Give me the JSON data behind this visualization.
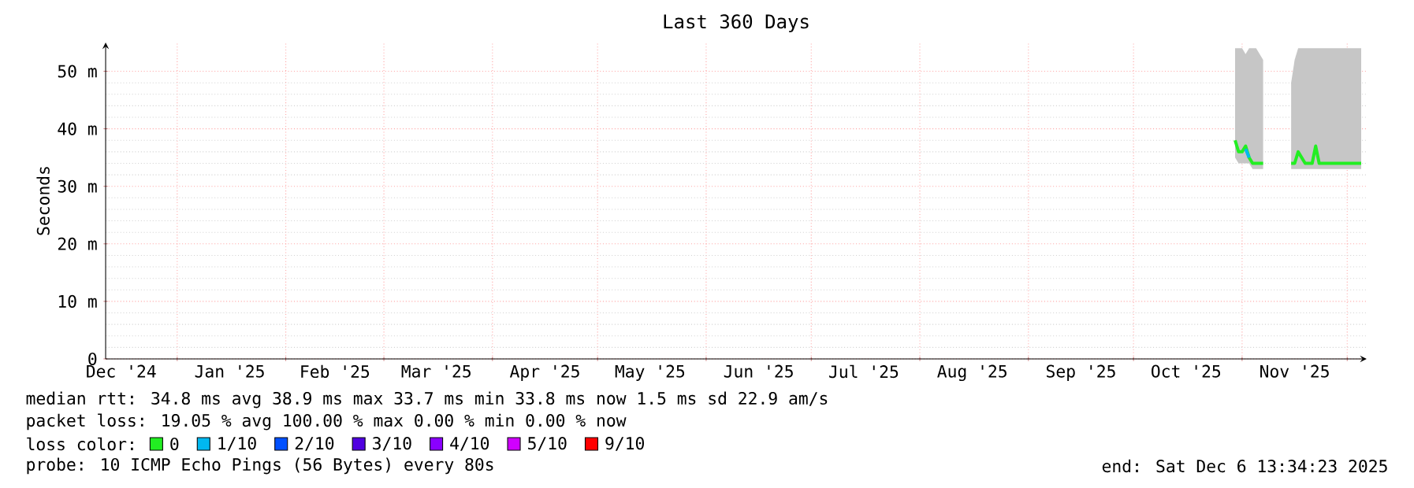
{
  "chart_data": {
    "type": "line",
    "title": "Last 360 Days",
    "ylabel": "Seconds",
    "xlim": [
      "2024-12-11T13:34",
      "2025-12-06T13:34"
    ],
    "xticks": [
      {
        "value": "2025-01-01",
        "label": null
      },
      {
        "value": "2025-02-01",
        "label": null
      },
      {
        "value": "2025-03-01",
        "label": null
      },
      {
        "value": "2025-04-01",
        "label": null
      },
      {
        "value": "2025-05-01",
        "label": null
      },
      {
        "value": "2025-06-01",
        "label": null
      },
      {
        "value": "2025-07-01",
        "label": null
      },
      {
        "value": "2025-08-01",
        "label": null
      },
      {
        "value": "2025-09-01",
        "label": null
      },
      {
        "value": "2025-10-01",
        "label": null
      },
      {
        "value": "2025-11-01",
        "label": null
      },
      {
        "value": "2025-12-01",
        "label": null
      },
      {
        "value": "2024-12-16",
        "label": "Dec '24"
      },
      {
        "value": "2025-01-16",
        "label": "Jan '25"
      },
      {
        "value": "2025-02-15",
        "label": "Feb '25"
      },
      {
        "value": "2025-03-16",
        "label": "Mar '25"
      },
      {
        "value": "2025-04-16",
        "label": "Apr '25"
      },
      {
        "value": "2025-05-16",
        "label": "May '25"
      },
      {
        "value": "2025-06-16",
        "label": "Jun '25"
      },
      {
        "value": "2025-07-16",
        "label": "Jul '25"
      },
      {
        "value": "2025-08-16",
        "label": "Aug '25"
      },
      {
        "value": "2025-09-16",
        "label": "Sep '25"
      },
      {
        "value": "2025-10-16",
        "label": "Oct '25"
      },
      {
        "value": "2025-11-16",
        "label": "Nov '25"
      }
    ],
    "ylim": [
      0,
      55
    ],
    "yticks": [
      0,
      {
        "value": 10,
        "label": "10 m"
      },
      {
        "value": 20,
        "label": "20 m"
      },
      {
        "value": 30,
        "label": "30 m"
      },
      {
        "value": 40,
        "label": "40 m"
      },
      {
        "value": 50,
        "label": "50 m"
      }
    ],
    "grid": true,
    "legend": "bottom",
    "legend_title": "loss color:",
    "series": [
      {
        "name": "0",
        "color": "#22ee22",
        "x": [
          "2025-10-30",
          "2025-10-31",
          "2025-11-01",
          "2025-11-02",
          "2025-11-03",
          "2025-11-04",
          "2025-11-05",
          "2025-11-07",
          "2025-11-08",
          "2025-11-15",
          "2025-11-16",
          "2025-11-17",
          "2025-11-18",
          "2025-11-19",
          "2025-11-21",
          "2025-11-22",
          "2025-11-23",
          "2025-11-25",
          "2025-11-28",
          "2025-12-01",
          "2025-12-05"
        ],
        "values": [
          38,
          36,
          36,
          37,
          35,
          34,
          34,
          34,
          null,
          34,
          34,
          36,
          35,
          34,
          34,
          37,
          34,
          34,
          34,
          34,
          34
        ],
        "lower": [
          35,
          34,
          34,
          34,
          34,
          33,
          33,
          33,
          null,
          33,
          33,
          33,
          33,
          33,
          33,
          33,
          33,
          33,
          33,
          33,
          33
        ],
        "upper": [
          54,
          54,
          54,
          53,
          54,
          54,
          54,
          52,
          null,
          48,
          52,
          54,
          54,
          54,
          54,
          54,
          54,
          54,
          54,
          54,
          54
        ]
      },
      {
        "name": "1/10",
        "color": "#00b8f0",
        "x": [
          "2025-11-02",
          "2025-11-03"
        ],
        "values": [
          36.5,
          35
        ]
      },
      {
        "name": "2/10",
        "color": "#0050ff"
      },
      {
        "name": "3/10",
        "color": "#5000e0"
      },
      {
        "name": "4/10",
        "color": "#8a00ff"
      },
      {
        "name": "5/10",
        "color": "#d000ff"
      },
      {
        "name": "9/10",
        "color": "#ff0000"
      }
    ],
    "annotations": [
      "median rtt: 34.8 ms avg 38.9 ms max 33.7 ms min 33.8 ms now 1.5 ms sd 22.9 am/s",
      "packet loss: 19.05 % avg 100.00 % max 0.00 % min 0.00 % now",
      "probe: 10 ICMP Echo Pings (56 Bytes) every 80s",
      "end: Sat Dec 6 13:34:23 2025"
    ]
  }
}
